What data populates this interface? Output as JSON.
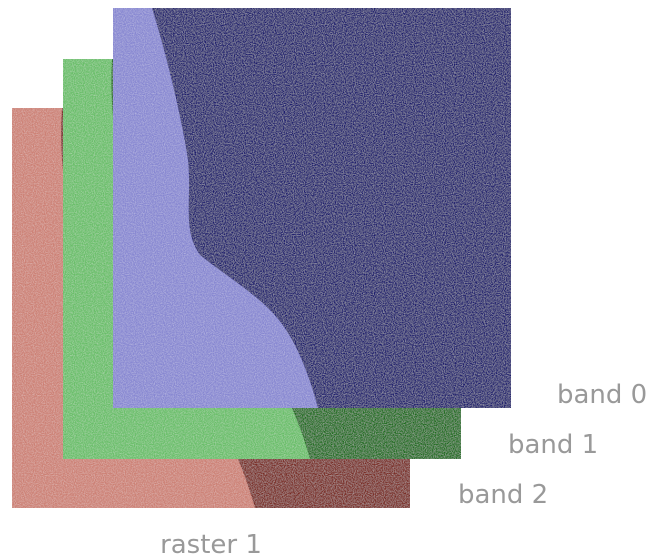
{
  "raster": {
    "label": "raster 1",
    "bands": [
      {
        "label": "band 0",
        "tint": "#2b2b8f",
        "land_tint": "#1e1e6e",
        "water_tint": "#8c8cd6"
      },
      {
        "label": "band 1",
        "tint": "#2f8a2f",
        "land_tint": "#1f6e1f",
        "water_tint": "#6cc26c"
      },
      {
        "label": "band 2",
        "tint": "#9a3a30",
        "land_tint": "#7a2a22",
        "water_tint": "#d18478"
      }
    ]
  }
}
